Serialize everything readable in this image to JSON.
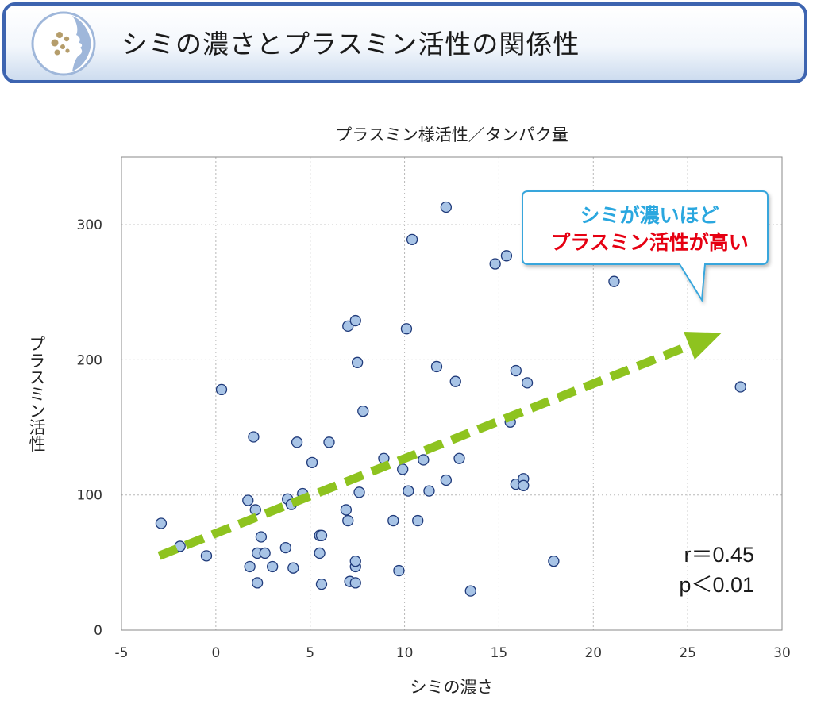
{
  "header": {
    "title": "シミの濃さとプラスミン活性の関係性"
  },
  "chart_data": {
    "type": "scatter",
    "title": "プラスミン様活性／タンパク量",
    "xlabel": "シミの濃さ",
    "ylabel": "プラスミン活性",
    "xlim": [
      -5,
      30
    ],
    "ylim": [
      0,
      350
    ],
    "xticks": [
      -5,
      0,
      5,
      10,
      15,
      20,
      25,
      30
    ],
    "yticks": [
      0,
      100,
      200,
      300
    ],
    "grid": true,
    "series": [
      {
        "marker_color": "#a8c4e6",
        "points": [
          [
            -2.9,
            79
          ],
          [
            -1.9,
            62
          ],
          [
            -0.5,
            55
          ],
          [
            0.3,
            178
          ],
          [
            1.7,
            96
          ],
          [
            1.8,
            47
          ],
          [
            2.0,
            143
          ],
          [
            2.1,
            89
          ],
          [
            2.2,
            57
          ],
          [
            2.2,
            35
          ],
          [
            2.4,
            69
          ],
          [
            2.6,
            57
          ],
          [
            3.0,
            47
          ],
          [
            3.7,
            61
          ],
          [
            3.8,
            97
          ],
          [
            4.0,
            93
          ],
          [
            4.1,
            46
          ],
          [
            4.3,
            139
          ],
          [
            4.6,
            101
          ],
          [
            5.1,
            124
          ],
          [
            5.5,
            70
          ],
          [
            5.5,
            57
          ],
          [
            5.6,
            70
          ],
          [
            5.6,
            34
          ],
          [
            6.0,
            139
          ],
          [
            6.9,
            89
          ],
          [
            7.0,
            225
          ],
          [
            7.0,
            81
          ],
          [
            7.1,
            36
          ],
          [
            7.4,
            229
          ],
          [
            7.4,
            47
          ],
          [
            7.4,
            51
          ],
          [
            7.4,
            35
          ],
          [
            7.5,
            198
          ],
          [
            7.6,
            102
          ],
          [
            7.8,
            162
          ],
          [
            8.9,
            127
          ],
          [
            9.4,
            81
          ],
          [
            9.7,
            44
          ],
          [
            9.9,
            119
          ],
          [
            10.1,
            223
          ],
          [
            10.2,
            103
          ],
          [
            10.4,
            289
          ],
          [
            10.7,
            81
          ],
          [
            11.0,
            126
          ],
          [
            11.3,
            103
          ],
          [
            11.7,
            195
          ],
          [
            12.2,
            111
          ],
          [
            12.2,
            313
          ],
          [
            12.7,
            184
          ],
          [
            12.9,
            127
          ],
          [
            13.5,
            29
          ],
          [
            14.8,
            271
          ],
          [
            15.4,
            277
          ],
          [
            15.6,
            154
          ],
          [
            15.9,
            192
          ],
          [
            15.9,
            108
          ],
          [
            16.3,
            112
          ],
          [
            16.3,
            107
          ],
          [
            16.5,
            183
          ],
          [
            17.9,
            51
          ],
          [
            21.1,
            258
          ],
          [
            27.8,
            180
          ]
        ]
      }
    ],
    "trend_arrow": {
      "from": [
        -3,
        55
      ],
      "to": [
        26.8,
        220
      ],
      "color": "#8ec31f"
    },
    "annotations": {
      "line1": "シミが濃いほど",
      "line2": "プラスミン活性が高い",
      "line1_color": "#2aa7df",
      "line2_color": "#e60012"
    },
    "stats": {
      "r": "r＝0.45",
      "p": "p＜0.01"
    }
  }
}
